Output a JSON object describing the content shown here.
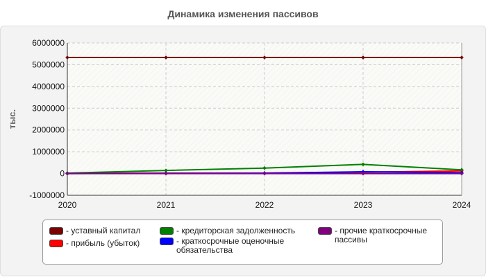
{
  "title": "Динамика изменения пассивов",
  "colors": {
    "panel_bg": "#f3f3f3",
    "plot_bg": "#fafaf7",
    "grid": "#cccccc"
  },
  "chart_data": {
    "type": "line",
    "title": "Динамика изменения пассивов",
    "ylabel": "тыс.",
    "xlabel": "",
    "x": [
      2020,
      2021,
      2022,
      2023,
      2024
    ],
    "x_tick_labels": [
      "2020",
      "2021",
      "2022",
      "2023",
      "2024"
    ],
    "ylim": [
      -1000000,
      6000000
    ],
    "y_ticks": [
      -1000000,
      0,
      1000000,
      2000000,
      3000000,
      4000000,
      5000000,
      6000000
    ],
    "y_tick_labels": [
      "-1000000",
      "0",
      "1000000",
      "2000000",
      "3000000",
      "4000000",
      "5000000",
      "6000000"
    ],
    "grid": true,
    "legend_position": "bottom",
    "series": [
      {
        "name": "- уставный капитал",
        "color": "#7b0000",
        "values": [
          5330000,
          5330000,
          5330000,
          5330000,
          5330000
        ]
      },
      {
        "name": "- прибыль (убыток)",
        "color": "#ff0000",
        "values": [
          10000,
          20000,
          20000,
          60000,
          120000
        ]
      },
      {
        "name": "- кредиторская задолженность",
        "color": "#008000",
        "values": [
          20000,
          140000,
          250000,
          420000,
          170000
        ]
      },
      {
        "name": "- краткосрочные оценочные обязательства",
        "color": "#0000ff",
        "values": [
          0,
          10000,
          20000,
          80000,
          40000
        ]
      },
      {
        "name": "- прочие краткосрочные пассивы",
        "color": "#800080",
        "values": [
          0,
          0,
          0,
          0,
          0
        ]
      }
    ]
  },
  "legend": {
    "items": [
      {
        "label": "- уставный капитал",
        "color": "#7b0000"
      },
      {
        "label": "- прибыль (убыток)",
        "color": "#ff0000"
      },
      {
        "label": "- кредиторская задолженность",
        "color": "#008000"
      },
      {
        "label": "- краткосрочные оценочные обязательства",
        "color": "#0000ff"
      },
      {
        "label": "- прочие краткосрочные пассивы",
        "color": "#800080"
      }
    ]
  }
}
